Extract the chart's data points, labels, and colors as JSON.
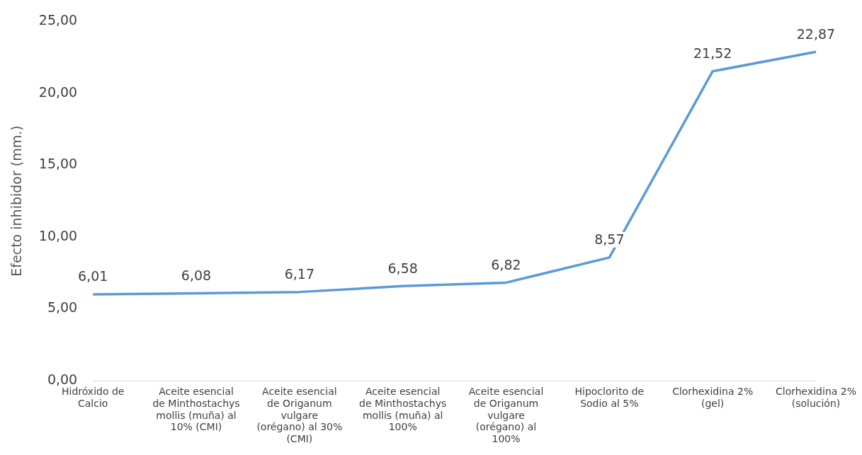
{
  "chart_data": {
    "type": "line",
    "ylabel": "Efecto inhibidor (mm.)",
    "categories": [
      "Hidróxido de Calcio",
      "Aceite esencial de Minthostachys mollis (muña) al 10% (CMI)",
      "Aceite esencial de Origanum vulgare (orégano) al 30% (CMI)",
      "Aceite esencial de Minthostachys mollis (muña) al 100%",
      "Aceite esencial de Origanum vulgare (orégano) al 100%",
      "Hipoclorito de Sodio al 5%",
      "Clorhexidina 2% (gel)",
      "Clorhexidina 2% (solución)"
    ],
    "series": [
      {
        "color": "#5b9bd5",
        "values": [
          6.01,
          6.08,
          6.17,
          6.58,
          6.82,
          8.57,
          21.52,
          22.87
        ],
        "value_labels": [
          "6,01",
          "6,08",
          "6,17",
          "6,58",
          "6,82",
          "8,57",
          "21,52",
          "22,87"
        ]
      }
    ],
    "ylim": [
      0,
      25
    ],
    "yticks": [
      {
        "value": 0,
        "label": "0,00"
      },
      {
        "value": 5,
        "label": "5,00"
      },
      {
        "value": 10,
        "label": "10,00"
      },
      {
        "value": 15,
        "label": "15,00"
      },
      {
        "value": 20,
        "label": "20,00"
      },
      {
        "value": 25,
        "label": "25,00"
      }
    ],
    "grid": false,
    "legend": false,
    "marker": "none",
    "line_style": "solid"
  }
}
